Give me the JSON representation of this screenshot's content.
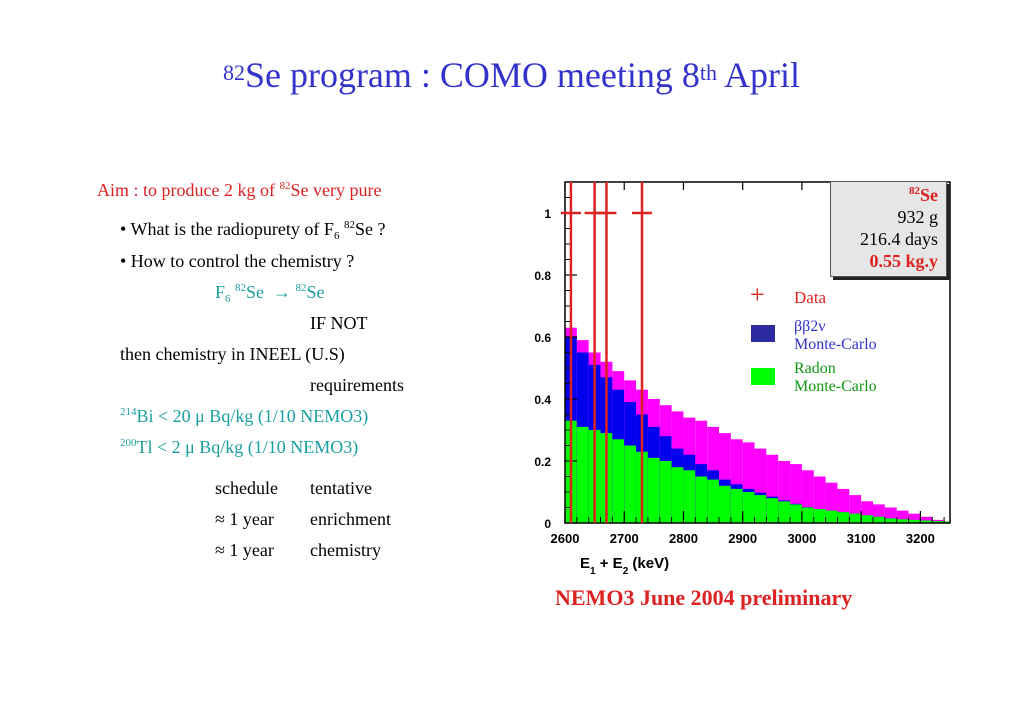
{
  "title": {
    "pre": "82",
    "main": "Se program : COMO meeting 8",
    "sup": "th",
    "post": " April"
  },
  "aim": {
    "text": "Aim : to produce 2 kg of ",
    "sup": "82",
    "post": "Se very pure"
  },
  "bullets": {
    "b1_pre": "• What is the radiopurety of F",
    "b1_sub": "6",
    "b1_sup": "82",
    "b1_post": "Se ?",
    "b2": "•  How to control the chemistry ?"
  },
  "reaction": {
    "f": "F",
    "sub": "6",
    "sup1": "82",
    "se1": "Se",
    "arrow": "→",
    "sup2": "82",
    "se2": "Se"
  },
  "if_not": "IF NOT",
  "then_chem": "then chemistry in INEEL (U.S)",
  "requirements": "requirements",
  "req_bi": {
    "sup": "214",
    "text": "Bi  < 20 μ Bq/kg   (1/10 NEMO3)"
  },
  "req_tl": {
    "sup": "200",
    "text": "Tl   <   2 μ Bq/kg  (1/10 NEMO3)"
  },
  "schedule": [
    {
      "col1": "schedule",
      "col2": "tentative"
    },
    {
      "col1": "≈ 1 year",
      "col2": "enrichment"
    },
    {
      "col1": "≈ 1 year",
      "col2": "chemistry"
    }
  ],
  "infobox": {
    "sup": "82",
    "iso": "Se",
    "mass": "932 g",
    "days": "216.4 days",
    "exposure": "0.55 kg.y"
  },
  "legend": {
    "data_marker": "+",
    "data_label": "Data",
    "bb_label": "ββ2ν",
    "bb_sub": "Monte-Carlo",
    "radon_label": "Radon",
    "radon_sub": "Monte-Carlo"
  },
  "caption": "NEMO3 June 2004 preliminary",
  "colors": {
    "title": "#3333cc",
    "red": "#dd2222",
    "magenta": "#ff00ff",
    "blue": "#0000ee",
    "green": "#00ff00",
    "teal": "#1a9fa0"
  },
  "chart_data": {
    "type": "bar",
    "subtype": "stacked-histogram",
    "xlabel": "E1 + E2 (keV)",
    "xlabel_parts": {
      "e": "E",
      "s1": "1",
      "mid": " + E",
      "s2": "2",
      "unit": " (keV)"
    },
    "x_ticks": [
      "2600",
      "2700",
      "2800",
      "2900",
      "3000",
      "3100",
      "3200"
    ],
    "y_ticks": [
      "0",
      "0.2",
      "0.4",
      "0.6",
      "0.8",
      "1"
    ],
    "xlim": [
      2600,
      3250
    ],
    "ylim": [
      0,
      1.1
    ],
    "bin_width": 20,
    "bins_start": 2600,
    "series": [
      {
        "name": "Radon Monte-Carlo",
        "color": "#00ff00",
        "values": [
          0.33,
          0.31,
          0.3,
          0.29,
          0.27,
          0.25,
          0.23,
          0.21,
          0.2,
          0.18,
          0.17,
          0.15,
          0.14,
          0.12,
          0.11,
          0.1,
          0.09,
          0.08,
          0.07,
          0.06,
          0.05,
          0.045,
          0.04,
          0.035,
          0.03,
          0.025,
          0.02,
          0.015,
          0.012,
          0.01,
          0.008,
          0.006,
          0.005
        ]
      },
      {
        "name": "ββ2ν Monte-Carlo",
        "color": "#0000ee",
        "values": [
          0.27,
          0.24,
          0.21,
          0.18,
          0.16,
          0.14,
          0.12,
          0.1,
          0.08,
          0.06,
          0.05,
          0.04,
          0.03,
          0.02,
          0.015,
          0.01,
          0.008,
          0.005,
          0.003,
          0.002,
          0.001,
          0,
          0,
          0,
          0,
          0,
          0,
          0,
          0,
          0,
          0,
          0,
          0
        ]
      },
      {
        "name": "total",
        "color": "#ff00ff",
        "values": [
          0.63,
          0.59,
          0.55,
          0.52,
          0.49,
          0.46,
          0.43,
          0.4,
          0.38,
          0.36,
          0.34,
          0.33,
          0.31,
          0.29,
          0.27,
          0.26,
          0.24,
          0.22,
          0.2,
          0.19,
          0.17,
          0.15,
          0.13,
          0.11,
          0.09,
          0.07,
          0.06,
          0.05,
          0.04,
          0.03,
          0.02,
          0.01,
          0.005
        ]
      }
    ],
    "data_points": [
      {
        "x": 2610,
        "y": 1
      },
      {
        "x": 2650,
        "y": 1
      },
      {
        "x": 2670,
        "y": 1
      },
      {
        "x": 2730,
        "y": 1
      }
    ]
  }
}
